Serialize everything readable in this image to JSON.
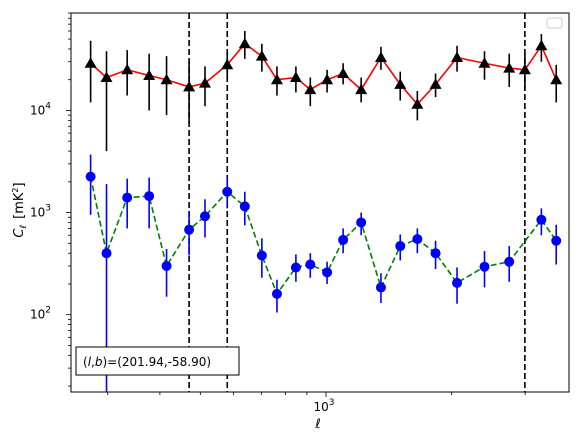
{
  "chart_data": {
    "type": "scatter",
    "xscale": "log",
    "yscale": "log",
    "xlabel_main": "ℓ",
    "ylabel_main": "C",
    "ylabel_sub": "ℓ",
    "ylabel_unit_pre": "[mK",
    "ylabel_unit_sup": "2",
    "ylabel_unit_post": "]",
    "xlim": [
      245,
      3820
    ],
    "ylim": [
      17.5,
      90000
    ],
    "xtick_labels": [
      {
        "base": "10",
        "exp": "3",
        "value": 1000
      }
    ],
    "ytick_labels": [
      {
        "base": "10",
        "exp": "2",
        "value": 100
      },
      {
        "base": "10",
        "exp": "3",
        "value": 1000
      },
      {
        "base": "10",
        "exp": "4",
        "value": 10000
      }
    ],
    "annotation": {
      "pre": "(",
      "l_sym": "l",
      "comma": ",",
      "b_sym": "b",
      "post": ")=(201.94,-58.90)"
    },
    "vlines": [
      470,
      580,
      2995
    ],
    "legend": {
      "location": "upper right",
      "entries": []
    },
    "series": [
      {
        "color": "#ff0000",
        "marker": "triangle",
        "linestyle": "solid",
        "points": [
          {
            "x": 273,
            "y": 29000,
            "lo": 12000,
            "hi": 48000
          },
          {
            "x": 298,
            "y": 21000,
            "lo": 4000,
            "hi": 38000
          },
          {
            "x": 334,
            "y": 25000,
            "lo": 14000,
            "hi": 39000
          },
          {
            "x": 377,
            "y": 22000,
            "lo": 10000,
            "hi": 36000
          },
          {
            "x": 415,
            "y": 20000,
            "lo": 9000,
            "hi": 34000
          },
          {
            "x": 470,
            "y": 17000,
            "lo": 7500,
            "hi": 30000
          },
          {
            "x": 513,
            "y": 18500,
            "lo": 11000,
            "hi": 27000
          },
          {
            "x": 580,
            "y": 28000,
            "lo": 20000,
            "hi": 37000
          },
          {
            "x": 639,
            "y": 45000,
            "lo": 32000,
            "hi": 60000
          },
          {
            "x": 702,
            "y": 34000,
            "lo": 24000,
            "hi": 45000
          },
          {
            "x": 763,
            "y": 20000,
            "lo": 14000,
            "hi": 27000
          },
          {
            "x": 847,
            "y": 21000,
            "lo": 15000,
            "hi": 27000
          },
          {
            "x": 917,
            "y": 16000,
            "lo": 11000,
            "hi": 21000
          },
          {
            "x": 1006,
            "y": 20000,
            "lo": 15000,
            "hi": 25000
          },
          {
            "x": 1099,
            "y": 23000,
            "lo": 18000,
            "hi": 29000
          },
          {
            "x": 1214,
            "y": 16000,
            "lo": 12000,
            "hi": 21000
          },
          {
            "x": 1354,
            "y": 33000,
            "lo": 25000,
            "hi": 42000
          },
          {
            "x": 1506,
            "y": 18000,
            "lo": 12500,
            "hi": 24000
          },
          {
            "x": 1655,
            "y": 11500,
            "lo": 8000,
            "hi": 15500
          },
          {
            "x": 1830,
            "y": 18000,
            "lo": 13500,
            "hi": 23000
          },
          {
            "x": 2060,
            "y": 33000,
            "lo": 24000,
            "hi": 43000
          },
          {
            "x": 2397,
            "y": 29000,
            "lo": 20000,
            "hi": 38000
          },
          {
            "x": 2747,
            "y": 26000,
            "lo": 17000,
            "hi": 36000
          },
          {
            "x": 2995,
            "y": 25000,
            "lo": 16000,
            "hi": 36000
          },
          {
            "x": 3280,
            "y": 43000,
            "lo": 30000,
            "hi": 56000
          },
          {
            "x": 3560,
            "y": 20000,
            "lo": 12000,
            "hi": 28000
          }
        ]
      },
      {
        "color": "#008000",
        "marker": "circle",
        "linestyle": "dashed",
        "marker_color": "#0000ff",
        "points": [
          {
            "x": 273,
            "y": 2250,
            "lo": 950,
            "hi": 3700
          },
          {
            "x": 298,
            "y": 400,
            "lo": 17.5,
            "hi": 1900
          },
          {
            "x": 334,
            "y": 1400,
            "lo": 700,
            "hi": 2150
          },
          {
            "x": 377,
            "y": 1450,
            "lo": 700,
            "hi": 2200
          },
          {
            "x": 415,
            "y": 300,
            "lo": 150,
            "hi": 440
          },
          {
            "x": 470,
            "y": 680,
            "lo": 380,
            "hi": 1000
          },
          {
            "x": 513,
            "y": 920,
            "lo": 570,
            "hi": 1350
          },
          {
            "x": 580,
            "y": 1600,
            "lo": 1100,
            "hi": 2200
          },
          {
            "x": 639,
            "y": 1150,
            "lo": 750,
            "hi": 1600
          },
          {
            "x": 702,
            "y": 380,
            "lo": 230,
            "hi": 560
          },
          {
            "x": 763,
            "y": 160,
            "lo": 105,
            "hi": 220
          },
          {
            "x": 847,
            "y": 290,
            "lo": 210,
            "hi": 390
          },
          {
            "x": 917,
            "y": 310,
            "lo": 230,
            "hi": 400
          },
          {
            "x": 1006,
            "y": 260,
            "lo": 200,
            "hi": 330
          },
          {
            "x": 1099,
            "y": 540,
            "lo": 400,
            "hi": 700
          },
          {
            "x": 1214,
            "y": 800,
            "lo": 600,
            "hi": 1000
          },
          {
            "x": 1354,
            "y": 185,
            "lo": 130,
            "hi": 255
          },
          {
            "x": 1506,
            "y": 470,
            "lo": 340,
            "hi": 610
          },
          {
            "x": 1655,
            "y": 550,
            "lo": 400,
            "hi": 700
          },
          {
            "x": 1830,
            "y": 400,
            "lo": 280,
            "hi": 530
          },
          {
            "x": 2060,
            "y": 205,
            "lo": 128,
            "hi": 290
          },
          {
            "x": 2397,
            "y": 295,
            "lo": 185,
            "hi": 420
          },
          {
            "x": 2747,
            "y": 330,
            "lo": 210,
            "hi": 470
          },
          {
            "x": 3280,
            "y": 850,
            "lo": 600,
            "hi": 1100
          },
          {
            "x": 3560,
            "y": 530,
            "lo": 310,
            "hi": 760
          }
        ]
      }
    ]
  }
}
